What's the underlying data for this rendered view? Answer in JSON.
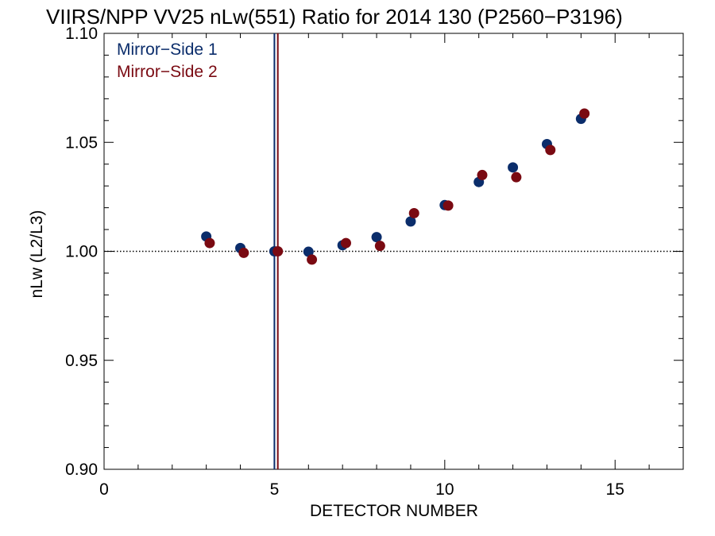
{
  "chart_data": {
    "type": "scatter",
    "title": "VIIRS/NPP VV25 nLw(551) Ratio for 2014 130 (P2560−P3196)",
    "xlabel": "DETECTOR NUMBER",
    "ylabel": "nLw (L2/L3)",
    "xlim": [
      0,
      17
    ],
    "ylim": [
      0.9,
      1.1
    ],
    "xticks": [
      0,
      5,
      10,
      15
    ],
    "xtick_labels": [
      "0",
      "5",
      "10",
      "15"
    ],
    "yticks": [
      0.9,
      0.95,
      1.0,
      1.05,
      1.1
    ],
    "ytick_labels": [
      "0.90",
      "0.95",
      "1.00",
      "1.05",
      "1.10"
    ],
    "reference_line": {
      "y": 1.0,
      "style": "dotted"
    },
    "vertical_lines": [
      {
        "x": 5.0,
        "color": "#0b2d6b"
      },
      {
        "x": 5.1,
        "color": "#7a0a12"
      }
    ],
    "grid": false,
    "legend_position": "top-left",
    "series": [
      {
        "name": "Mirror−Side 1",
        "color": "#0b2d6b",
        "x": [
          3,
          4,
          5,
          6,
          7,
          8,
          9,
          10,
          11,
          12,
          13,
          14
        ],
        "y": [
          1.0068,
          1.0015,
          1.0,
          0.9998,
          1.0028,
          1.0065,
          1.0137,
          1.0212,
          1.0318,
          1.0385,
          1.0492,
          1.0608
        ]
      },
      {
        "name": "Mirror−Side 2",
        "color": "#7a0a12",
        "x": [
          3.1,
          4.1,
          5.1,
          6.1,
          7.1,
          8.1,
          9.1,
          10.1,
          11.1,
          12.1,
          13.1,
          14.1
        ],
        "y": [
          1.0038,
          0.9993,
          1.0,
          0.9962,
          1.0038,
          1.0025,
          1.0175,
          1.021,
          1.035,
          1.034,
          1.0465,
          1.0632
        ]
      }
    ]
  }
}
